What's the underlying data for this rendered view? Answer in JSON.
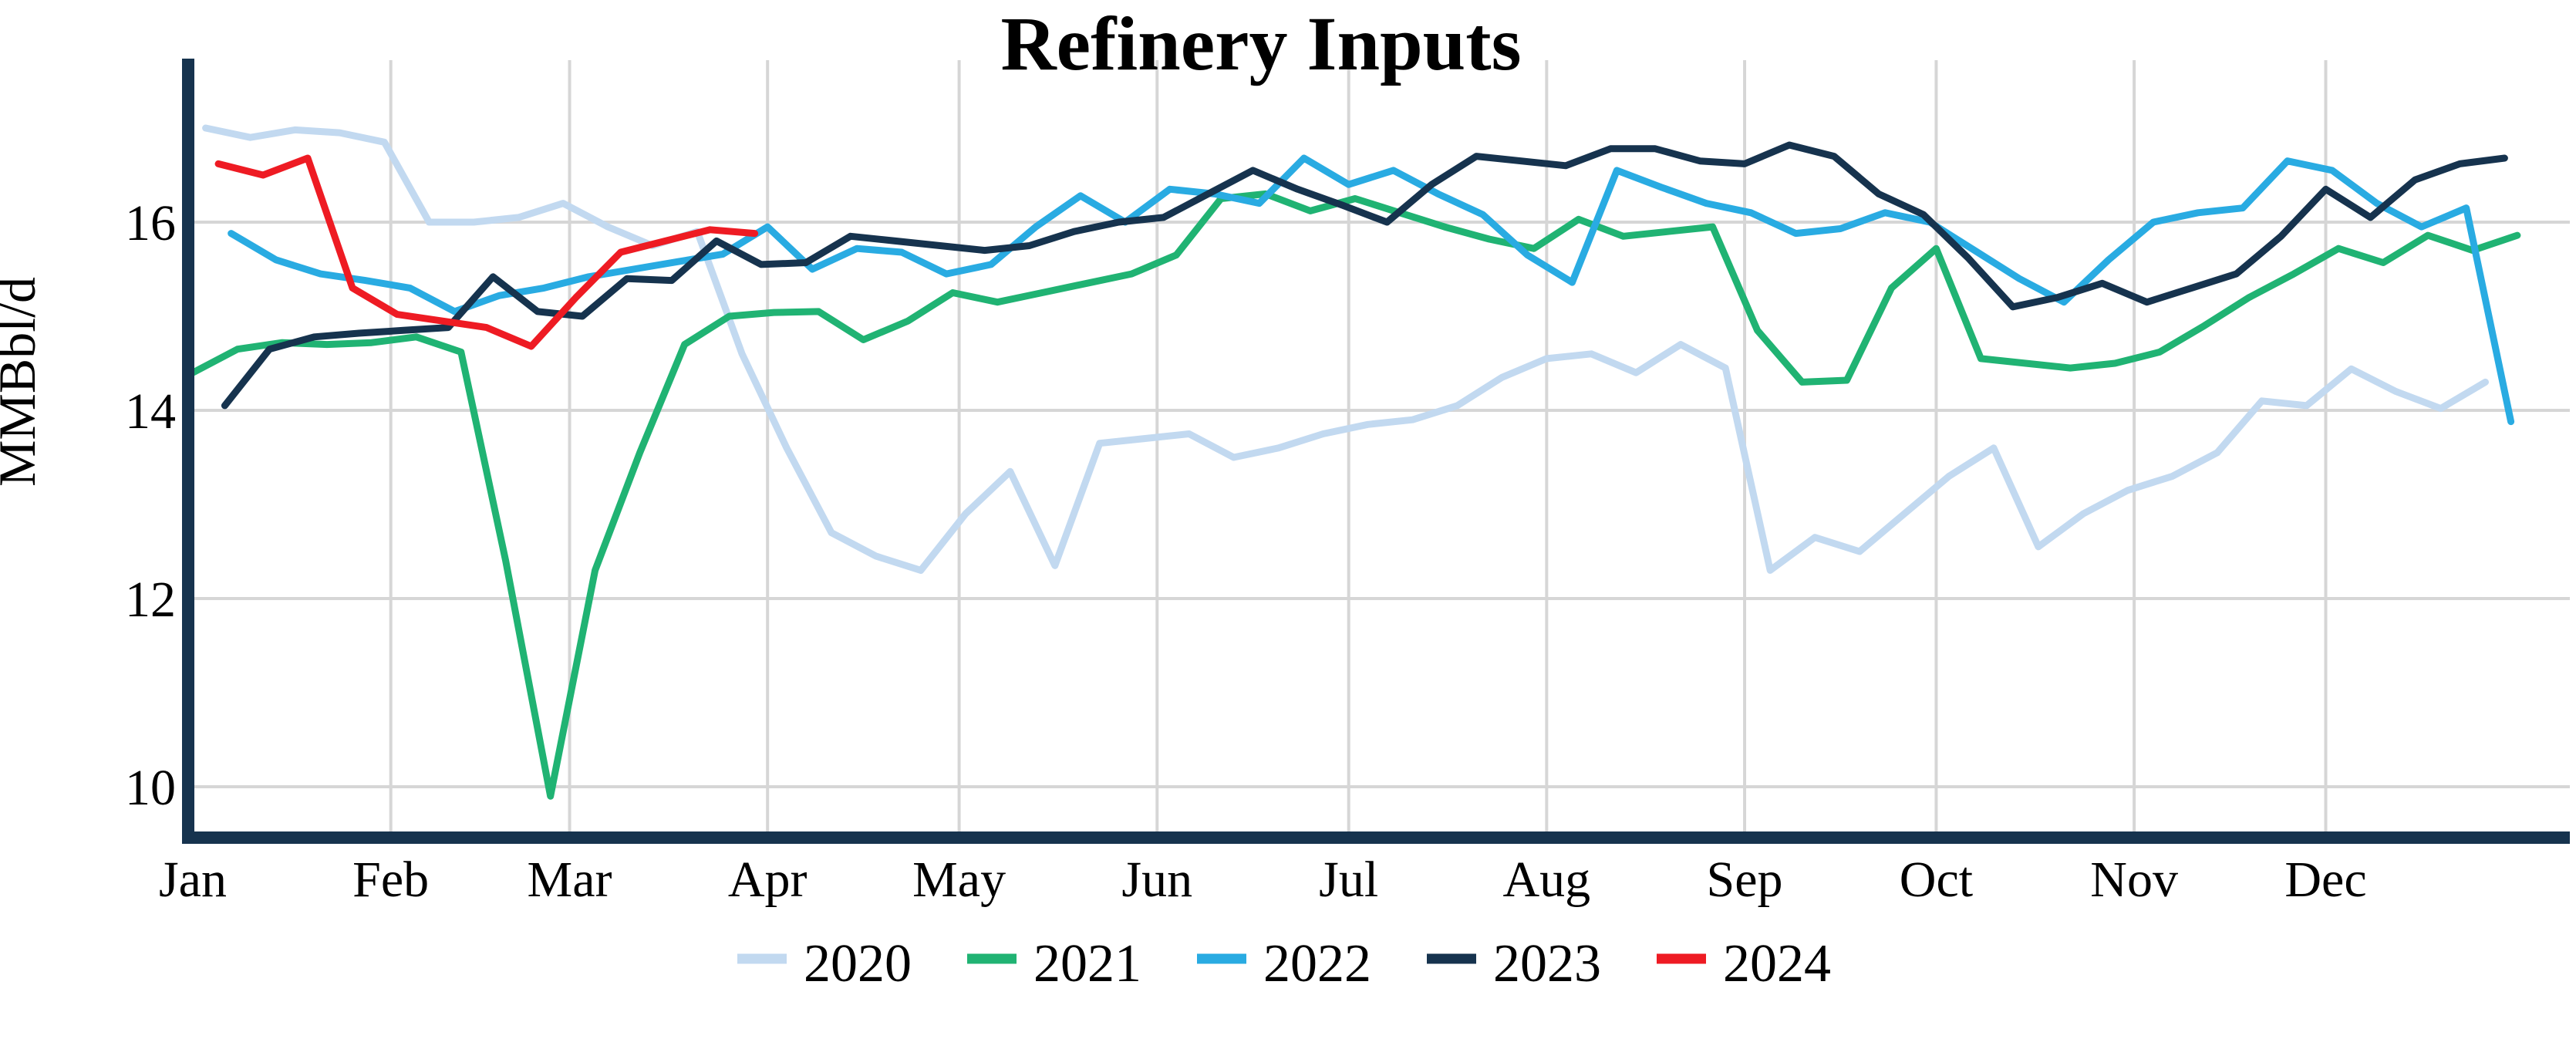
{
  "title": "Refinery Inputs",
  "y_axis": {
    "label": "MMBbl/d",
    "tick_labels": [
      "10",
      "12",
      "14",
      "16"
    ]
  },
  "x_axis": {
    "month_labels": [
      "Jan",
      "Feb",
      "Mar",
      "Apr",
      "May",
      "Jun",
      "Jul",
      "Aug",
      "Sep",
      "Oct",
      "Nov",
      "Dec"
    ]
  },
  "legend": {
    "labels": [
      "2020",
      "2021",
      "2022",
      "2023",
      "2024"
    ]
  },
  "colors": {
    "series_2020": "#c2d9f0",
    "series_2021": "#20b373",
    "series_2022": "#29abe2",
    "series_2023": "#16334e",
    "series_2024": "#ee1b23",
    "axis": "#16334e",
    "grid": "#d6d6d6",
    "background": "#ffffff",
    "text": "#000000"
  },
  "chart_data": {
    "type": "line",
    "title": "Refinery Inputs",
    "xlabel": "",
    "ylabel": "MMBbl/d",
    "x_unit": "weekly data points, plotted by day-of-year (Jan–Dec)",
    "y_unit": "MMBbl/d",
    "ylim": [
      9.2,
      17.35
    ],
    "y_ticks": [
      10,
      12,
      14,
      16
    ],
    "grid": true,
    "legend_position": "bottom center",
    "month_tick_days": [
      1,
      32,
      60,
      91,
      121,
      152,
      182,
      213,
      244,
      274,
      305,
      335
    ],
    "month_labels": [
      "Jan",
      "Feb",
      "Mar",
      "Apr",
      "May",
      "Jun",
      "Jul",
      "Aug",
      "Sep",
      "Oct",
      "Nov",
      "Dec"
    ],
    "series": [
      {
        "name": "2020",
        "color": "#c2d9f0",
        "start_day_of_year": 3,
        "interval_days": 7,
        "values": [
          17.0,
          16.9,
          16.98,
          16.95,
          16.85,
          16.0,
          16.0,
          16.05,
          16.2,
          15.95,
          15.75,
          15.9,
          14.6,
          13.6,
          12.7,
          12.45,
          12.3,
          12.9,
          13.35,
          12.35,
          13.65,
          13.7,
          13.75,
          13.5,
          13.6,
          13.75,
          13.85,
          13.9,
          14.05,
          14.35,
          14.55,
          14.6,
          14.4,
          14.7,
          14.45,
          12.3,
          12.65,
          12.5,
          12.9,
          13.3,
          13.6,
          12.55,
          12.9,
          13.15,
          13.3,
          13.55,
          14.1,
          14.05,
          14.44,
          14.2,
          14.02,
          14.3
        ]
      },
      {
        "name": "2021",
        "color": "#20b373",
        "start_day_of_year": 1,
        "interval_days": 7,
        "values": [
          14.4,
          14.65,
          14.72,
          14.7,
          14.72,
          14.78,
          14.62,
          12.4,
          9.9,
          12.3,
          13.55,
          14.7,
          15.0,
          15.04,
          15.05,
          14.75,
          14.95,
          15.25,
          15.15,
          15.25,
          15.35,
          15.45,
          15.65,
          16.25,
          16.3,
          16.12,
          16.25,
          16.1,
          15.95,
          15.82,
          15.72,
          16.03,
          15.85,
          15.9,
          15.95,
          14.85,
          14.3,
          14.32,
          15.3,
          15.72,
          14.55,
          14.5,
          14.45,
          14.5,
          14.62,
          14.9,
          15.2,
          15.45,
          15.72,
          15.57,
          15.86,
          15.7,
          15.86
        ]
      },
      {
        "name": "2022",
        "color": "#29abe2",
        "start_day_of_year": 7,
        "interval_days": 7,
        "values": [
          15.88,
          15.6,
          15.45,
          15.38,
          15.3,
          15.05,
          15.22,
          15.3,
          15.42,
          15.5,
          15.58,
          15.66,
          15.95,
          15.5,
          15.72,
          15.68,
          15.45,
          15.55,
          15.95,
          16.28,
          16.0,
          16.35,
          16.3,
          16.2,
          16.68,
          16.4,
          16.55,
          16.3,
          16.08,
          15.65,
          15.36,
          16.55,
          16.37,
          16.2,
          16.1,
          15.88,
          15.93,
          16.1,
          16.0,
          15.7,
          15.4,
          15.15,
          15.6,
          16.0,
          16.1,
          16.15,
          16.65,
          16.55,
          16.2,
          15.95,
          16.15,
          13.88
        ]
      },
      {
        "name": "2023",
        "color": "#16334e",
        "start_day_of_year": 6,
        "interval_days": 7,
        "values": [
          14.05,
          14.65,
          14.78,
          14.82,
          14.85,
          14.88,
          15.42,
          15.05,
          15.0,
          15.4,
          15.38,
          15.8,
          15.55,
          15.57,
          15.85,
          15.8,
          15.75,
          15.7,
          15.75,
          15.9,
          16.0,
          16.05,
          16.3,
          16.55,
          16.35,
          16.18,
          16.0,
          16.4,
          16.7,
          16.65,
          16.6,
          16.78,
          16.78,
          16.65,
          16.62,
          16.82,
          16.7,
          16.3,
          16.08,
          15.62,
          15.1,
          15.2,
          15.35,
          15.15,
          15.3,
          15.45,
          15.85,
          16.35,
          16.05,
          16.45,
          16.62,
          16.68
        ]
      },
      {
        "name": "2024",
        "color": "#ee1b23",
        "start_day_of_year": 5,
        "interval_days": 7,
        "values": [
          16.62,
          16.5,
          16.68,
          15.3,
          15.02,
          14.95,
          14.88,
          14.68,
          15.2,
          15.68,
          15.8,
          15.92,
          15.88
        ]
      }
    ]
  }
}
